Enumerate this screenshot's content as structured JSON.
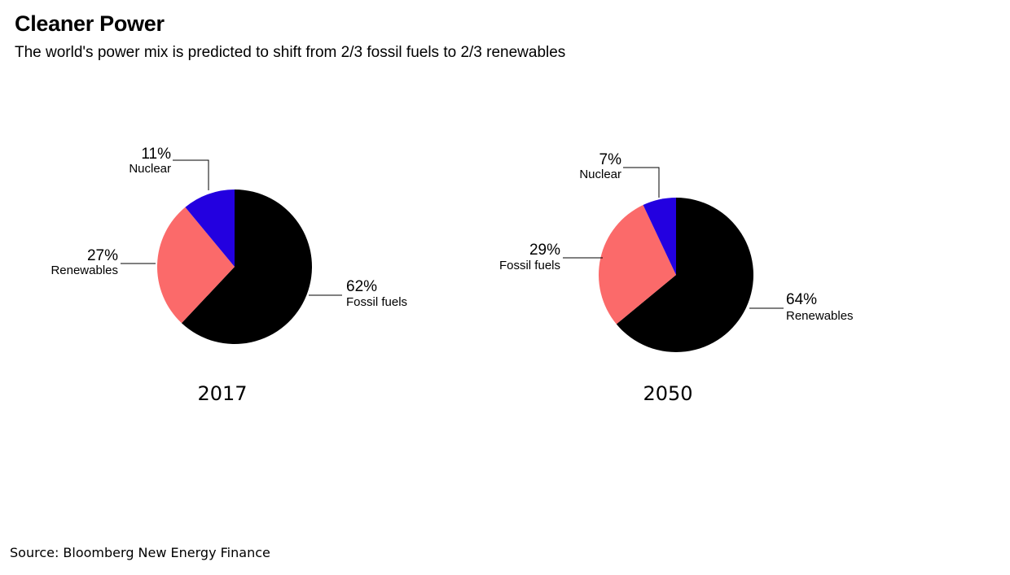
{
  "title": "Cleaner Power",
  "subtitle": "The world's power mix is predicted to shift from 2/3 fossil fuels to 2/3 renewables",
  "source": "Source: Bloomberg New Energy Finance",
  "chart_data": [
    {
      "type": "pie",
      "title": "2017",
      "slices": [
        {
          "label": "Fossil fuels",
          "value": 62,
          "display": "62%",
          "color": "#000000"
        },
        {
          "label": "Renewables",
          "value": 27,
          "display": "27%",
          "color": "#fb6a6a"
        },
        {
          "label": "Nuclear",
          "value": 11,
          "display": "11%",
          "color": "#2300e0"
        }
      ]
    },
    {
      "type": "pie",
      "title": "2050",
      "slices": [
        {
          "label": "Renewables",
          "value": 64,
          "display": "64%",
          "color": "#000000"
        },
        {
          "label": "Fossil fuels",
          "value": 29,
          "display": "29%",
          "color": "#fb6a6a"
        },
        {
          "label": "Nuclear",
          "value": 7,
          "display": "7%",
          "color": "#2300e0"
        }
      ]
    }
  ]
}
